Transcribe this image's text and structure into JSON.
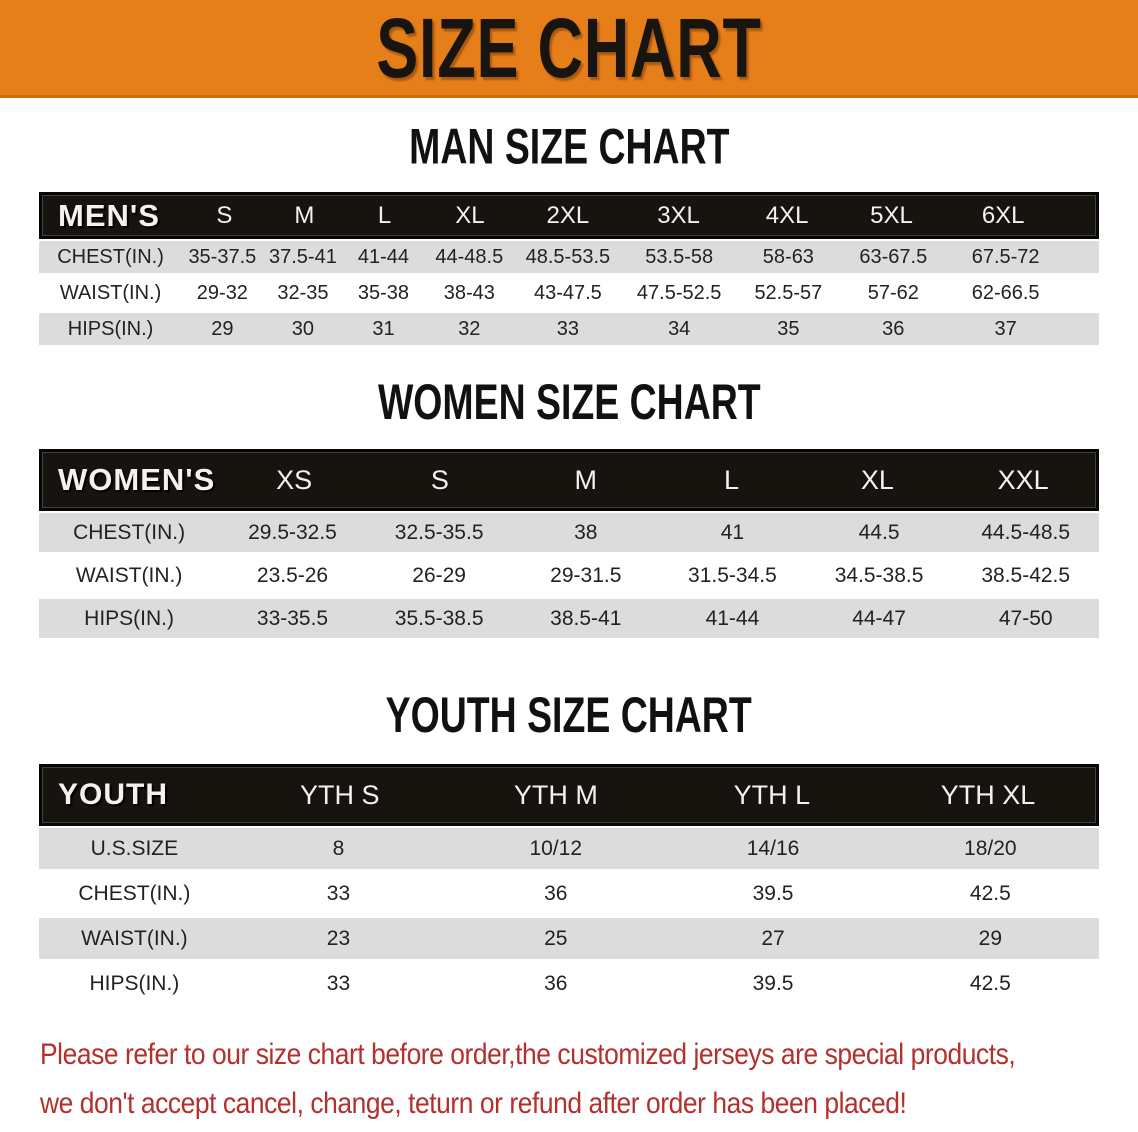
{
  "banner": {
    "title": "SIZE CHART"
  },
  "sections": [
    {
      "heading": "MAN SIZE CHART",
      "table": {
        "corner": "MEN'S",
        "sizes": [
          "S",
          "M",
          "L",
          "XL",
          "2XL",
          "3XL",
          "4XL",
          "5XL",
          "6XL"
        ],
        "rows": [
          {
            "label": "CHEST(IN.)",
            "values": [
              "35-37.5",
              "37.5-41",
              "41-44",
              "44-48.5",
              "48.5-53.5",
              "53.5-58",
              "58-63",
              "63-67.5",
              "67.5-72"
            ]
          },
          {
            "label": "WAIST(IN.)",
            "values": [
              "29-32",
              "32-35",
              "35-38",
              "38-43",
              "43-47.5",
              "47.5-52.5",
              "52.5-57",
              "57-62",
              "62-66.5"
            ]
          },
          {
            "label": "HIPS(IN.)",
            "values": [
              "29",
              "30",
              "31",
              "32",
              "33",
              "34",
              "35",
              "36",
              "37"
            ]
          }
        ]
      }
    },
    {
      "heading": "WOMEN SIZE CHART",
      "table": {
        "corner": "WOMEN'S",
        "sizes": [
          "XS",
          "S",
          "M",
          "L",
          "XL",
          "XXL"
        ],
        "rows": [
          {
            "label": "CHEST(IN.)",
            "values": [
              "29.5-32.5",
              "32.5-35.5",
              "38",
              "41",
              "44.5",
              "44.5-48.5"
            ]
          },
          {
            "label": "WAIST(IN.)",
            "values": [
              "23.5-26",
              "26-29",
              "29-31.5",
              "31.5-34.5",
              "34.5-38.5",
              "38.5-42.5"
            ]
          },
          {
            "label": "HIPS(IN.)",
            "values": [
              "33-35.5",
              "35.5-38.5",
              "38.5-41",
              "41-44",
              "44-47",
              "47-50"
            ]
          }
        ]
      }
    },
    {
      "heading": "YOUTH SIZE CHART",
      "table": {
        "corner": "YOUTH",
        "sizes": [
          "YTH S",
          "YTH M",
          "YTH L",
          "YTH XL"
        ],
        "rows": [
          {
            "label": "U.S.SIZE",
            "values": [
              "8",
              "10/12",
              "14/16",
              "18/20"
            ]
          },
          {
            "label": "CHEST(IN.)",
            "values": [
              "33",
              "36",
              "39.5",
              "42.5"
            ]
          },
          {
            "label": "WAIST(IN.)",
            "values": [
              "23",
              "25",
              "27",
              "29"
            ]
          },
          {
            "label": "HIPS(IN.)",
            "values": [
              "33",
              "36",
              "39.5",
              "42.5"
            ]
          }
        ]
      }
    }
  ],
  "disclaimer": {
    "line1": "Please refer to our size chart before order,the customized jerseys are special products,",
    "line2": "we don't accept cancel, change, teturn or refund after order has been placed!"
  },
  "colors": {
    "banner_background": "#E67E1A",
    "table_header_background": "#17130f",
    "row_stripe_gray": "#dcdcdc",
    "disclaimer_red": "#B3302C"
  }
}
